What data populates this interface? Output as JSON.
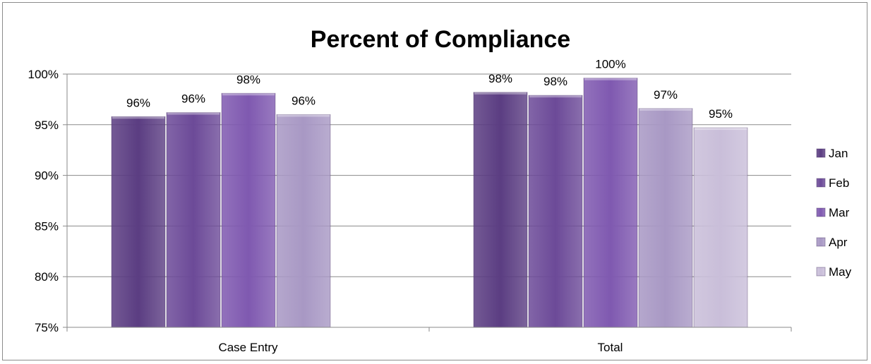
{
  "chart_data": {
    "type": "bar",
    "title": "Percent of Compliance",
    "xlabel": "",
    "ylabel": "",
    "categories": [
      "Case Entry",
      "Total"
    ],
    "ylim": [
      0.75,
      1.0
    ],
    "yticks": [
      {
        "value": 1.0,
        "label": "100%"
      },
      {
        "value": 0.95,
        "label": "95%"
      },
      {
        "value": 0.9,
        "label": "90%"
      },
      {
        "value": 0.85,
        "label": "85%"
      },
      {
        "value": 0.8,
        "label": "80%"
      },
      {
        "value": 0.75,
        "label": "75%"
      }
    ],
    "grid": true,
    "legend_position": "right",
    "series": [
      {
        "name": "Jan",
        "color": "#5b3d82",
        "values": [
          0.958,
          0.982
        ],
        "labels": [
          "96%",
          "98%"
        ]
      },
      {
        "name": "Feb",
        "color": "#6c4a98",
        "values": [
          0.962,
          0.979
        ],
        "labels": [
          "96%",
          "98%"
        ]
      },
      {
        "name": "Mar",
        "color": "#7f59b0",
        "values": [
          0.981,
          0.996
        ],
        "labels": [
          "98%",
          "100%"
        ]
      },
      {
        "name": "Apr",
        "color": "#a898c4",
        "values": [
          0.96,
          0.966
        ],
        "labels": [
          "96%",
          "97%"
        ]
      },
      {
        "name": "May",
        "color": "#c9bed9",
        "values": [
          null,
          0.947
        ],
        "labels": [
          "",
          "95%"
        ]
      }
    ]
  }
}
